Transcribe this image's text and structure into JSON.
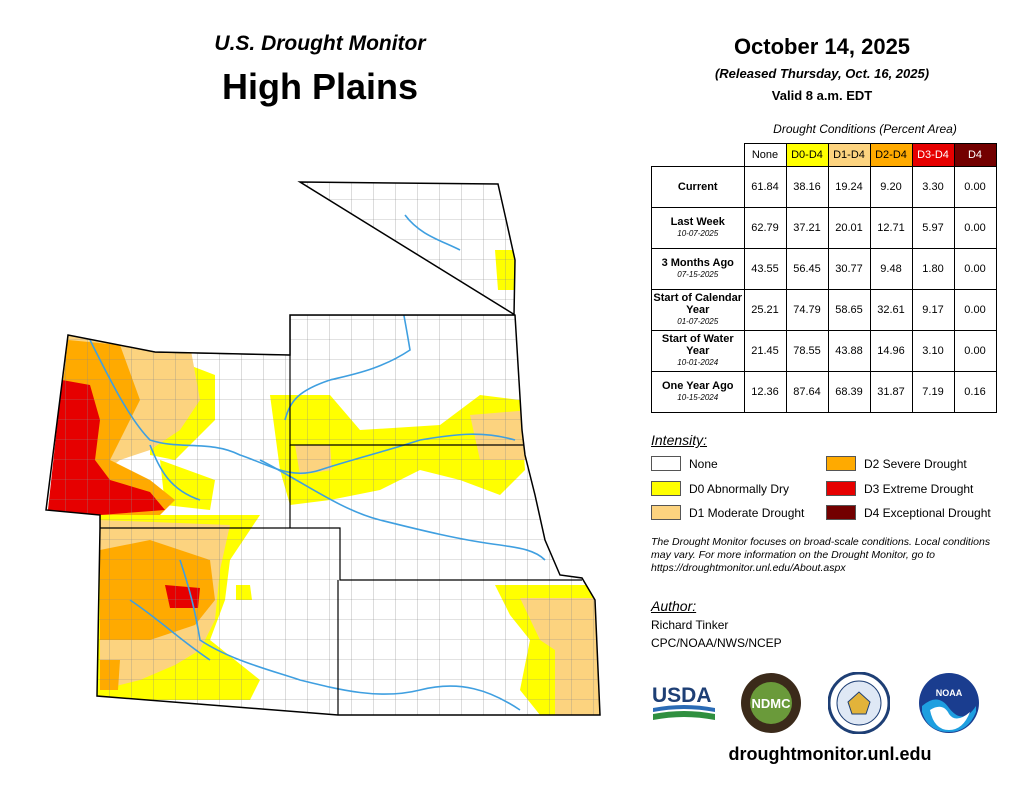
{
  "header": {
    "title_small": "U.S. Drought Monitor",
    "title_big": "High Plains",
    "date": "October 14, 2025",
    "released": "(Released Thursday, Oct. 16, 2025)",
    "valid": "Valid 8 a.m. EDT"
  },
  "conditions": {
    "caption": "Drought Conditions (Percent Area)",
    "columns": [
      {
        "label": "None",
        "color": "#ffffff",
        "text_color": "#000000"
      },
      {
        "label": "D0-D4",
        "color": "#ffff00",
        "text_color": "#000000"
      },
      {
        "label": "D1-D4",
        "color": "#fcd37f",
        "text_color": "#000000"
      },
      {
        "label": "D2-D4",
        "color": "#ffaa00",
        "text_color": "#000000"
      },
      {
        "label": "D3-D4",
        "color": "#e60000",
        "text_color": "#ffffff"
      },
      {
        "label": "D4",
        "color": "#730000",
        "text_color": "#ffffff"
      }
    ],
    "rows": [
      {
        "label": "Current",
        "sub": "",
        "values": [
          "61.84",
          "38.16",
          "19.24",
          "9.20",
          "3.30",
          "0.00"
        ]
      },
      {
        "label": "Last Week",
        "sub": "10-07-2025",
        "values": [
          "62.79",
          "37.21",
          "20.01",
          "12.71",
          "5.97",
          "0.00"
        ]
      },
      {
        "label": "3 Months Ago",
        "sub": "07-15-2025",
        "values": [
          "43.55",
          "56.45",
          "30.77",
          "9.48",
          "1.80",
          "0.00"
        ]
      },
      {
        "label": "Start of Calendar Year",
        "sub": "01-07-2025",
        "values": [
          "25.21",
          "74.79",
          "58.65",
          "32.61",
          "9.17",
          "0.00"
        ]
      },
      {
        "label": "Start of Water Year",
        "sub": "10-01-2024",
        "values": [
          "21.45",
          "78.55",
          "43.88",
          "14.96",
          "3.10",
          "0.00"
        ]
      },
      {
        "label": "One Year Ago",
        "sub": "10-15-2024",
        "values": [
          "12.36",
          "87.64",
          "68.39",
          "31.87",
          "7.19",
          "0.16"
        ]
      }
    ]
  },
  "legend": {
    "title": "Intensity:",
    "items": [
      {
        "label": "None",
        "color": "#ffffff"
      },
      {
        "label": "D0 Abnormally Dry",
        "color": "#ffff00"
      },
      {
        "label": "D1 Moderate Drought",
        "color": "#fcd37f"
      },
      {
        "label": "D2 Severe Drought",
        "color": "#ffaa00"
      },
      {
        "label": "D3 Extreme Drought",
        "color": "#e60000"
      },
      {
        "label": "D4 Exceptional Drought",
        "color": "#730000"
      }
    ]
  },
  "disclaimer": "The Drought Monitor focuses on broad-scale conditions. Local conditions may vary. For more information on the Drought Monitor, go to https://droughtmonitor.unl.edu/About.aspx",
  "author": {
    "title": "Author:",
    "name": "Richard Tinker",
    "org": "CPC/NOAA/NWS/NCEP"
  },
  "logos": {
    "usda": "USDA",
    "ndmc": "NDMC",
    "noaa": "NOAA"
  },
  "site": "droughtmonitor.unl.edu"
}
